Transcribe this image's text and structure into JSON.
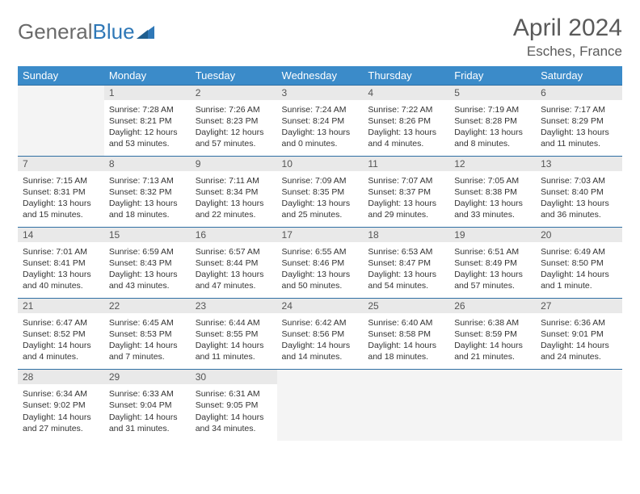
{
  "brand": {
    "part1": "General",
    "part2": "Blue"
  },
  "title": "April 2024",
  "location": "Esches, France",
  "colors": {
    "header_bg": "#3b8bc9",
    "header_text": "#ffffff",
    "daynum_bg": "#e9e9e9",
    "blank_bg": "#f4f4f4",
    "rule": "#2f6fa3",
    "text": "#333333",
    "title_text": "#5a5a5a",
    "logo_gray": "#6a6a6a",
    "logo_blue": "#2f78b7"
  },
  "dow": [
    "Sunday",
    "Monday",
    "Tuesday",
    "Wednesday",
    "Thursday",
    "Friday",
    "Saturday"
  ],
  "weeks": [
    [
      {
        "blank": true
      },
      {
        "n": "1",
        "sr": "7:28 AM",
        "ss": "8:21 PM",
        "dl": "Daylight: 12 hours and 53 minutes."
      },
      {
        "n": "2",
        "sr": "7:26 AM",
        "ss": "8:23 PM",
        "dl": "Daylight: 12 hours and 57 minutes."
      },
      {
        "n": "3",
        "sr": "7:24 AM",
        "ss": "8:24 PM",
        "dl": "Daylight: 13 hours and 0 minutes."
      },
      {
        "n": "4",
        "sr": "7:22 AM",
        "ss": "8:26 PM",
        "dl": "Daylight: 13 hours and 4 minutes."
      },
      {
        "n": "5",
        "sr": "7:19 AM",
        "ss": "8:28 PM",
        "dl": "Daylight: 13 hours and 8 minutes."
      },
      {
        "n": "6",
        "sr": "7:17 AM",
        "ss": "8:29 PM",
        "dl": "Daylight: 13 hours and 11 minutes."
      }
    ],
    [
      {
        "n": "7",
        "sr": "7:15 AM",
        "ss": "8:31 PM",
        "dl": "Daylight: 13 hours and 15 minutes."
      },
      {
        "n": "8",
        "sr": "7:13 AM",
        "ss": "8:32 PM",
        "dl": "Daylight: 13 hours and 18 minutes."
      },
      {
        "n": "9",
        "sr": "7:11 AM",
        "ss": "8:34 PM",
        "dl": "Daylight: 13 hours and 22 minutes."
      },
      {
        "n": "10",
        "sr": "7:09 AM",
        "ss": "8:35 PM",
        "dl": "Daylight: 13 hours and 25 minutes."
      },
      {
        "n": "11",
        "sr": "7:07 AM",
        "ss": "8:37 PM",
        "dl": "Daylight: 13 hours and 29 minutes."
      },
      {
        "n": "12",
        "sr": "7:05 AM",
        "ss": "8:38 PM",
        "dl": "Daylight: 13 hours and 33 minutes."
      },
      {
        "n": "13",
        "sr": "7:03 AM",
        "ss": "8:40 PM",
        "dl": "Daylight: 13 hours and 36 minutes."
      }
    ],
    [
      {
        "n": "14",
        "sr": "7:01 AM",
        "ss": "8:41 PM",
        "dl": "Daylight: 13 hours and 40 minutes."
      },
      {
        "n": "15",
        "sr": "6:59 AM",
        "ss": "8:43 PM",
        "dl": "Daylight: 13 hours and 43 minutes."
      },
      {
        "n": "16",
        "sr": "6:57 AM",
        "ss": "8:44 PM",
        "dl": "Daylight: 13 hours and 47 minutes."
      },
      {
        "n": "17",
        "sr": "6:55 AM",
        "ss": "8:46 PM",
        "dl": "Daylight: 13 hours and 50 minutes."
      },
      {
        "n": "18",
        "sr": "6:53 AM",
        "ss": "8:47 PM",
        "dl": "Daylight: 13 hours and 54 minutes."
      },
      {
        "n": "19",
        "sr": "6:51 AM",
        "ss": "8:49 PM",
        "dl": "Daylight: 13 hours and 57 minutes."
      },
      {
        "n": "20",
        "sr": "6:49 AM",
        "ss": "8:50 PM",
        "dl": "Daylight: 14 hours and 1 minute."
      }
    ],
    [
      {
        "n": "21",
        "sr": "6:47 AM",
        "ss": "8:52 PM",
        "dl": "Daylight: 14 hours and 4 minutes."
      },
      {
        "n": "22",
        "sr": "6:45 AM",
        "ss": "8:53 PM",
        "dl": "Daylight: 14 hours and 7 minutes."
      },
      {
        "n": "23",
        "sr": "6:44 AM",
        "ss": "8:55 PM",
        "dl": "Daylight: 14 hours and 11 minutes."
      },
      {
        "n": "24",
        "sr": "6:42 AM",
        "ss": "8:56 PM",
        "dl": "Daylight: 14 hours and 14 minutes."
      },
      {
        "n": "25",
        "sr": "6:40 AM",
        "ss": "8:58 PM",
        "dl": "Daylight: 14 hours and 18 minutes."
      },
      {
        "n": "26",
        "sr": "6:38 AM",
        "ss": "8:59 PM",
        "dl": "Daylight: 14 hours and 21 minutes."
      },
      {
        "n": "27",
        "sr": "6:36 AM",
        "ss": "9:01 PM",
        "dl": "Daylight: 14 hours and 24 minutes."
      }
    ],
    [
      {
        "n": "28",
        "sr": "6:34 AM",
        "ss": "9:02 PM",
        "dl": "Daylight: 14 hours and 27 minutes."
      },
      {
        "n": "29",
        "sr": "6:33 AM",
        "ss": "9:04 PM",
        "dl": "Daylight: 14 hours and 31 minutes."
      },
      {
        "n": "30",
        "sr": "6:31 AM",
        "ss": "9:05 PM",
        "dl": "Daylight: 14 hours and 34 minutes."
      },
      {
        "blank": true
      },
      {
        "blank": true
      },
      {
        "blank": true
      },
      {
        "blank": true
      }
    ]
  ],
  "labels": {
    "sunrise": "Sunrise:",
    "sunset": "Sunset:"
  }
}
